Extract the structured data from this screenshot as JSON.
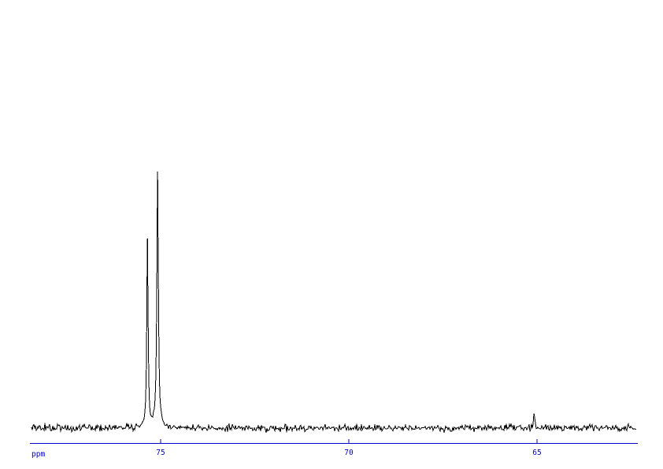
{
  "page": {
    "background_color": "#ffffff",
    "description": "NMR spectrum display area with noisy baseline trace and x axis in ppm"
  },
  "axis": {
    "unit_label": "ppm",
    "color": "#0000cc",
    "ticks": [
      {
        "ppm": 75,
        "label": "75"
      },
      {
        "ppm": 70,
        "label": "70"
      },
      {
        "ppm": 65,
        "label": "65"
      }
    ]
  },
  "chart_data": {
    "type": "line",
    "kind": "nmr-spectrum",
    "title": "",
    "xlabel": "ppm",
    "ylabel": "",
    "grid": false,
    "legend": null,
    "x_axis": {
      "direction": "decreasing-to-right",
      "visible_range_ppm": [
        78.4,
        62.4
      ],
      "tick_values_ppm": [
        75,
        70,
        65
      ]
    },
    "trace_color": "#000000",
    "axis_color": "#0000cc",
    "peaks": [
      {
        "ppm": 75.35,
        "rel_height": 0.742,
        "width_ppm": 0.019
      },
      {
        "ppm": 75.08,
        "rel_height": 1.0,
        "width_ppm": 0.023
      },
      {
        "ppm": 65.08,
        "rel_height": 0.068,
        "width_ppm": 0.017
      }
    ],
    "max_peak_rel_height": 1.0,
    "noise_band_rel": 0.02,
    "noise_seed": 12345
  }
}
